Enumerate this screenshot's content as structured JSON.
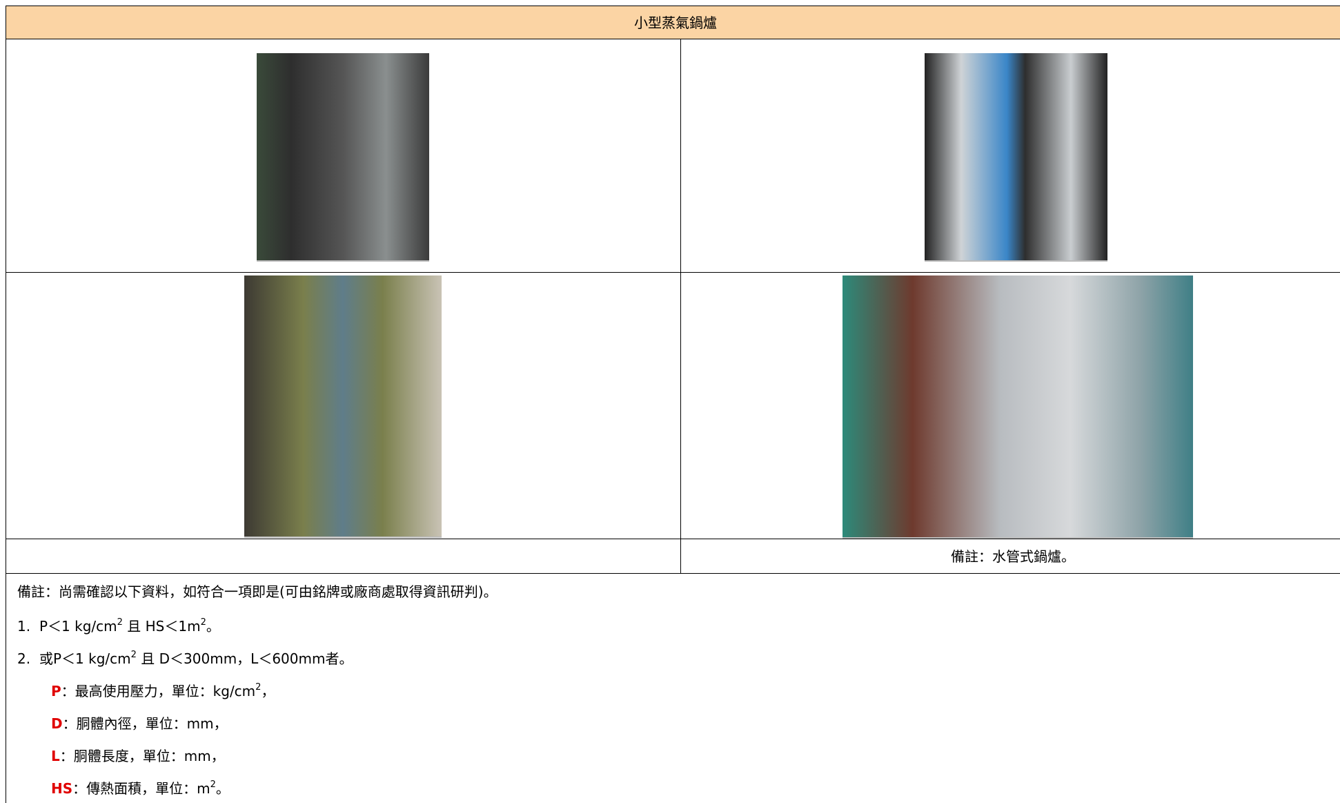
{
  "table": {
    "title": "小型蒸氣鍋爐",
    "right_caption": "備註：水管式鍋爐。"
  },
  "notes": {
    "intro": "備註：尚需確認以下資料，如符合一項即是(可由銘牌或廠商處取得資訊研判)。",
    "items": [
      {
        "number": "1.",
        "parts": [
          {
            "t": "P＜1 kg/cm"
          },
          {
            "sup": "2"
          },
          {
            "t": " 且 HS＜1m"
          },
          {
            "sup": "2"
          },
          {
            "t": "。"
          }
        ]
      },
      {
        "number": "2.",
        "parts": [
          {
            "t": "或P＜1 kg/cm"
          },
          {
            "sup": "2"
          },
          {
            "t": " 且 D＜300mm，L＜600mm者。"
          }
        ]
      }
    ],
    "definitions": [
      {
        "term": "P",
        "parts": [
          {
            "t": "：最高使用壓力，單位：kg/cm"
          },
          {
            "sup": "2"
          },
          {
            "t": "，"
          }
        ]
      },
      {
        "term": "D",
        "parts": [
          {
            "t": "：胴體內徑，單位：mm，"
          }
        ]
      },
      {
        "term": "L",
        "parts": [
          {
            "t": "：胴體長度，單位：mm，"
          }
        ]
      },
      {
        "term": "HS",
        "parts": [
          {
            "t": "：傳熱面積，單位：m"
          },
          {
            "sup": "2"
          },
          {
            "t": "。"
          }
        ]
      }
    ]
  }
}
